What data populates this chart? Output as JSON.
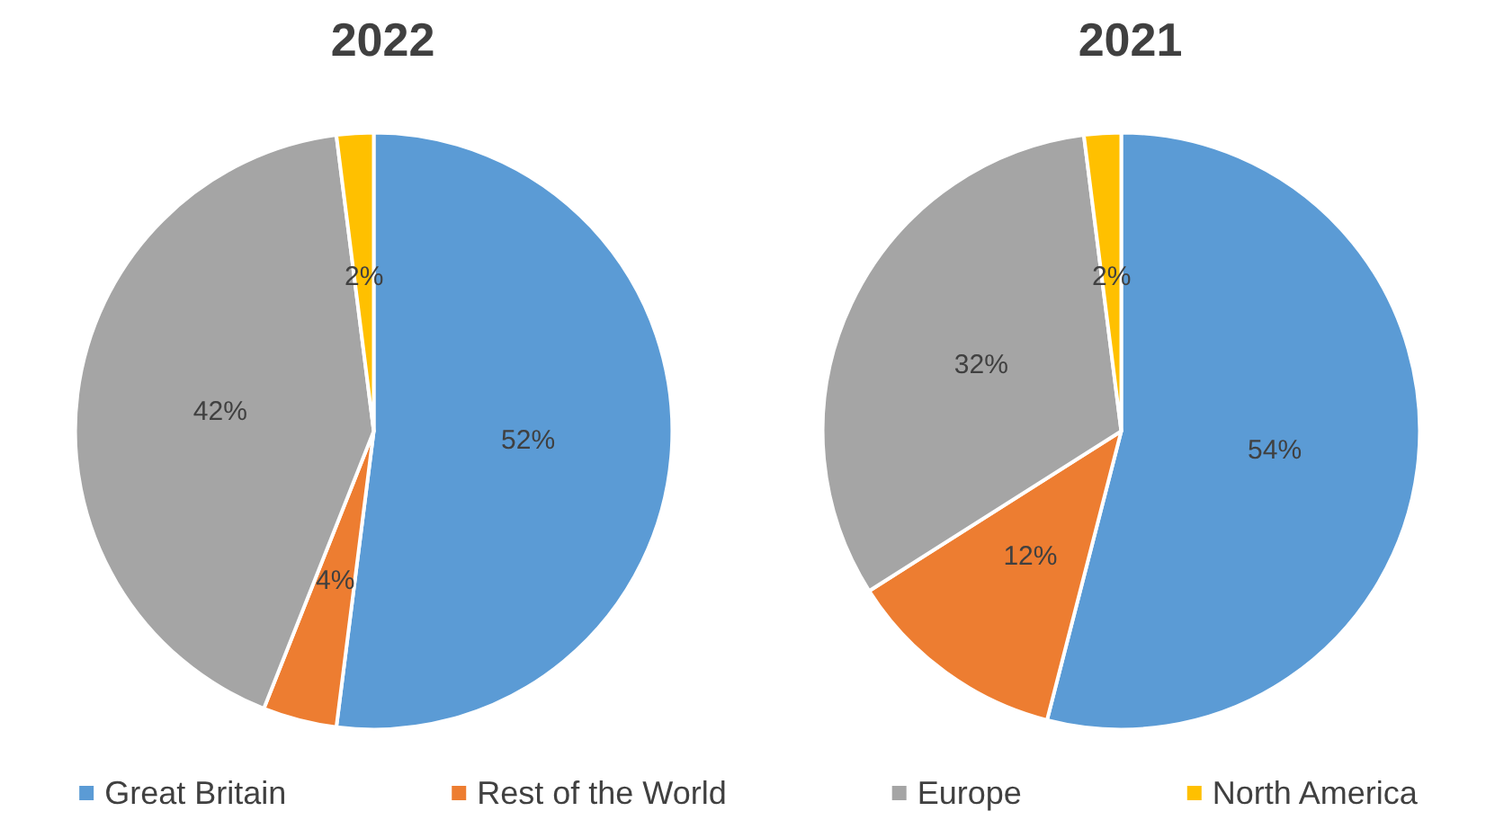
{
  "chart_data": {
    "type": "pie",
    "categories": [
      "Great Britain",
      "Rest of the World",
      "Europe",
      "North America"
    ],
    "colors": [
      "#5b9bd5",
      "#ed7d31",
      "#a5a5a5",
      "#ffc000"
    ],
    "legend": "bottom",
    "series": [
      {
        "name": "2022",
        "values": [
          52,
          4,
          42,
          2
        ],
        "value_labels": [
          "52%",
          "4%",
          "42%",
          "2%"
        ]
      },
      {
        "name": "2021",
        "values": [
          54,
          12,
          32,
          2
        ],
        "value_labels": [
          "54%",
          "12%",
          "32%",
          "2%"
        ]
      }
    ]
  }
}
